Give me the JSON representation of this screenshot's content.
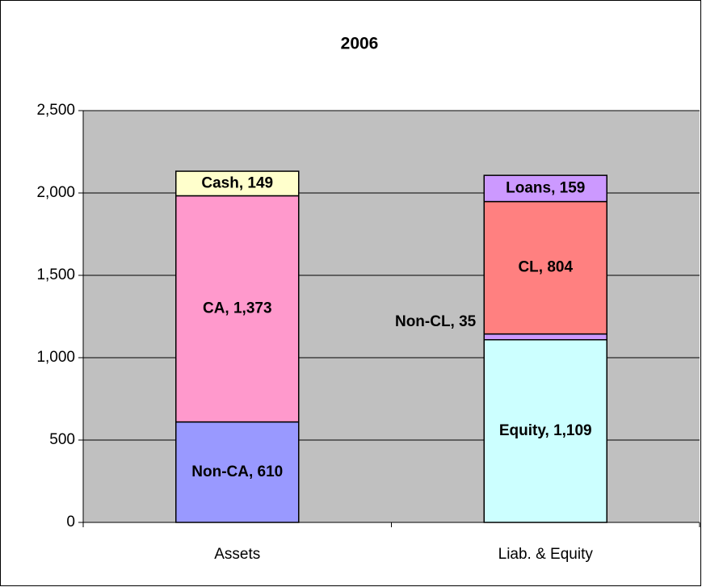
{
  "chart_data": {
    "type": "stacked_bar",
    "title": "2006",
    "categories": [
      "Assets",
      "Liab. & Equity"
    ],
    "series": [
      {
        "name": "Non-CA",
        "color": "#9999ff",
        "values": [
          610,
          null
        ],
        "value_labels": [
          "Non-CA, 610",
          null
        ]
      },
      {
        "name": "CA",
        "color": "#ff99cc",
        "values": [
          1373,
          null
        ],
        "value_labels": [
          "CA, 1,373",
          null
        ]
      },
      {
        "name": "Cash",
        "color": "#ffffcc",
        "values": [
          149,
          null
        ],
        "value_labels": [
          "Cash, 149",
          null
        ]
      },
      {
        "name": "Equity",
        "color": "#ccffff",
        "values": [
          null,
          1109
        ],
        "value_labels": [
          null,
          "Equity, 1,109"
        ]
      },
      {
        "name": "Non-CL",
        "color": "#cc99ff",
        "values": [
          null,
          35
        ],
        "value_labels": [
          null,
          "Non-CL, 35"
        ]
      },
      {
        "name": "CL",
        "color": "#ff8080",
        "values": [
          null,
          804
        ],
        "value_labels": [
          null,
          "CL, 804"
        ]
      },
      {
        "name": "Loans",
        "color": "#cc99ff",
        "values": [
          null,
          159
        ],
        "value_labels": [
          null,
          "Loans, 159"
        ]
      }
    ],
    "ylim": [
      0,
      2500
    ],
    "yticks": [
      0,
      {
        "value": 500,
        "label": "500"
      },
      {
        "value": 1000,
        "label": "1,000"
      },
      {
        "value": 1500,
        "label": "1,500"
      },
      {
        "value": 2000,
        "label": "2,000"
      },
      {
        "value": 2500,
        "label": "2,500"
      }
    ],
    "grid": true,
    "plot_background": "#c0c0c0"
  }
}
